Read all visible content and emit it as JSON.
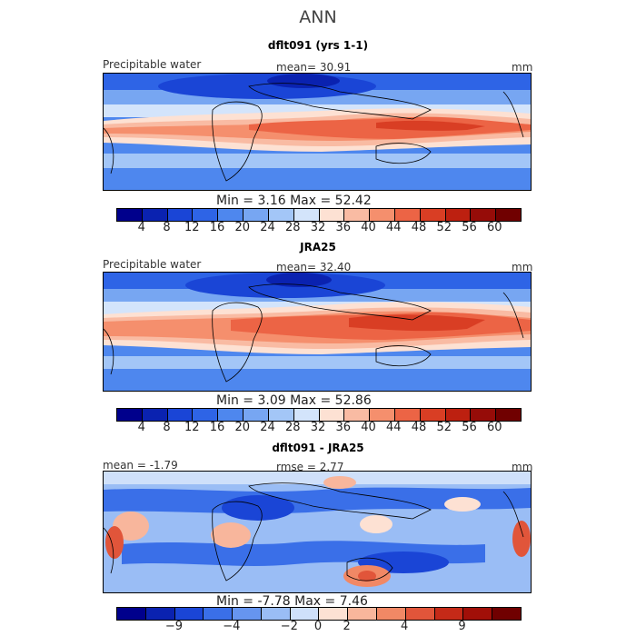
{
  "figure_title": "ANN",
  "units": "mm",
  "colors": {
    "field": [
      "#00008c",
      "#0a22b0",
      "#1a45d6",
      "#2e64e6",
      "#4e87ee",
      "#77a6f2",
      "#a3c6f7",
      "#d3e4fb",
      "#fde1d3",
      "#f9bba3",
      "#f58f6d",
      "#ec6445",
      "#d93e24",
      "#bd2010",
      "#960c08",
      "#700000"
    ],
    "diff": [
      "#00008c",
      "#0a22b0",
      "#1a45d6",
      "#3a6fe8",
      "#6695ef",
      "#9abdf5",
      "#cfe0fa",
      "#fde1d3",
      "#f8b69c",
      "#f18865",
      "#e1553a",
      "#c52a18",
      "#a10f08",
      "#700000"
    ]
  },
  "panels": [
    {
      "title": "dflt091 (yrs 1-1)",
      "left_label": "Precipitable water",
      "center_label": "mean=  30.91",
      "right_label": "mm",
      "minmax": "Min =   3.16  Max =  52.42",
      "cbar_ticks": [
        "4",
        "8",
        "12",
        "16",
        "20",
        "24",
        "28",
        "32",
        "36",
        "40",
        "44",
        "48",
        "52",
        "56",
        "60"
      ]
    },
    {
      "title": "JRA25",
      "left_label": "Precipitable water",
      "center_label": "mean=  32.40",
      "right_label": "mm",
      "minmax": "Min =   3.09  Max =  52.86",
      "cbar_ticks": [
        "4",
        "8",
        "12",
        "16",
        "20",
        "24",
        "28",
        "32",
        "36",
        "40",
        "44",
        "48",
        "52",
        "56",
        "60"
      ]
    },
    {
      "title": "dflt091 - JRA25",
      "left_label": "mean =  -1.79",
      "center_label": "rmse =   2.77",
      "right_label": "mm",
      "minmax": "Min =  -7.78  Max =   7.46",
      "cbar_ticks": [
        "−9",
        "−4",
        "−2",
        "0",
        "2",
        "4",
        "9"
      ]
    }
  ]
}
